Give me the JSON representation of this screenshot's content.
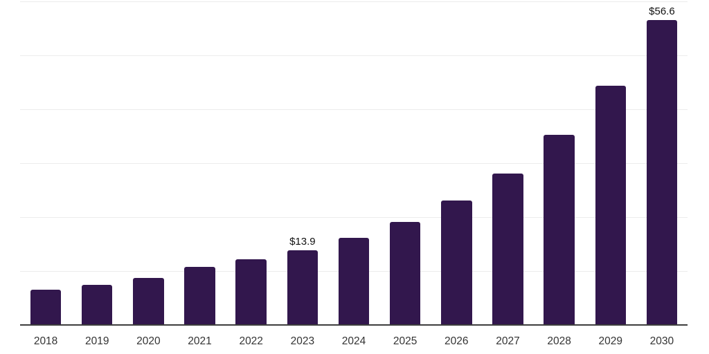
{
  "chart_data": {
    "type": "bar",
    "title": "",
    "xlabel": "",
    "ylabel": "",
    "categories": [
      "2018",
      "2019",
      "2020",
      "2021",
      "2022",
      "2023",
      "2024",
      "2025",
      "2026",
      "2027",
      "2028",
      "2029",
      "2030"
    ],
    "values": [
      6.6,
      7.4,
      8.7,
      10.8,
      12.2,
      13.9,
      16.2,
      19.1,
      23.1,
      28.1,
      35.2,
      44.3,
      56.6
    ],
    "point_labels": [
      {
        "category": "2023",
        "text": "$13.9"
      },
      {
        "category": "2030",
        "text": "$56.6"
      }
    ],
    "ylim": [
      0,
      60
    ],
    "gridline_step": 10,
    "grid": "horizontal-only",
    "legend_position": "none",
    "y_tick_labels_visible": false,
    "colors": {
      "bar": "#32174d",
      "gridline": "#ececec",
      "axis_line": "#3d3d3d",
      "tick_label": "#333333",
      "data_label": "#111111",
      "background": "#ffffff"
    }
  }
}
